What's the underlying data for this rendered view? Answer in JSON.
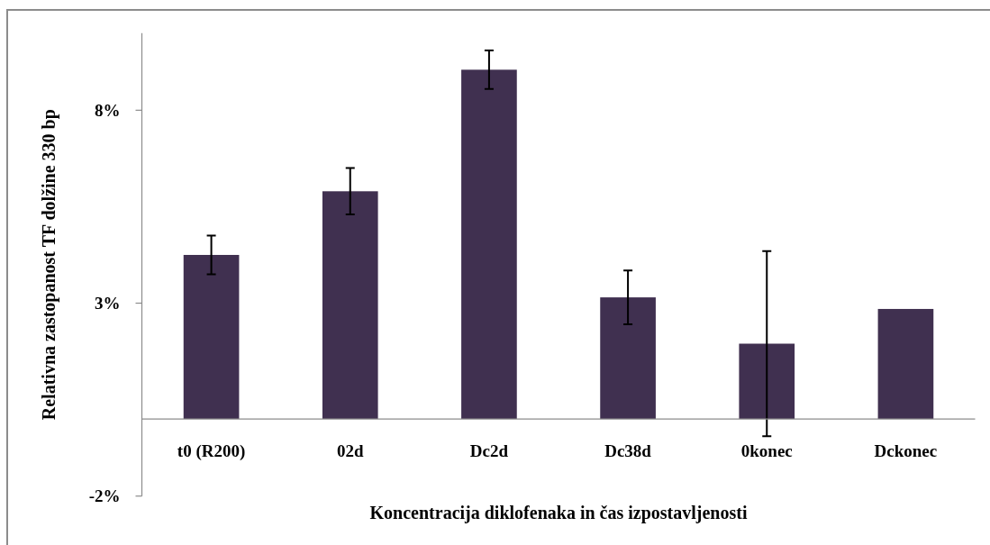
{
  "chart_data": {
    "type": "bar",
    "categories": [
      "t0 (R200)",
      "02d",
      "Dc2d",
      "Dc38d",
      "0konec",
      "Dckonec"
    ],
    "values": [
      4.25,
      5.9,
      9.05,
      3.15,
      1.95,
      2.85
    ],
    "errors": [
      0.5,
      0.6,
      0.5,
      0.7,
      2.4,
      null
    ],
    "color": "#403050",
    "xlabel": "Koncentracija diklofenaka in čas izpostavljenosti",
    "ylabel": "Relativna zastopanost TF dolžine 330 bp",
    "ylim": [
      -2,
      10
    ],
    "yticks": [
      {
        "value": -2,
        "label": "-2%"
      },
      {
        "value": 3,
        "label": "3%"
      },
      {
        "value": 8,
        "label": "8%"
      }
    ]
  }
}
